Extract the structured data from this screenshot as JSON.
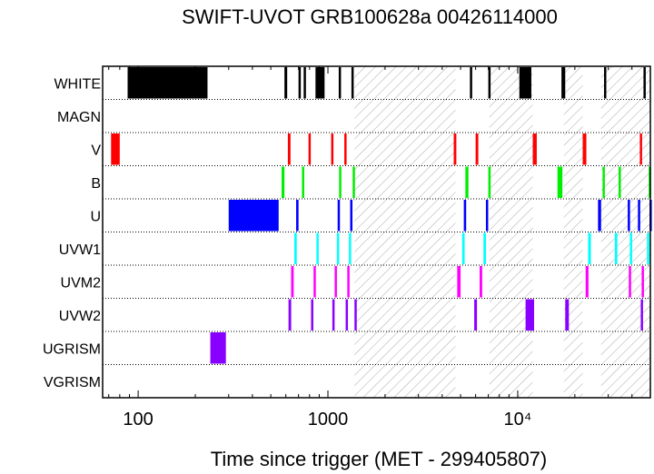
{
  "chart_data": {
    "type": "timeline",
    "title": "SWIFT-UVOT GRB100628a 00426114000",
    "xlabel": "Time since trigger (MET - 299405807)",
    "x_scale": "log",
    "xlim": [
      65,
      50000
    ],
    "x_ticks": [
      {
        "value": 100,
        "label": "100"
      },
      {
        "value": 1000,
        "label": "1000"
      },
      {
        "value": 10000,
        "label": "10⁴"
      }
    ],
    "filters": [
      "WHITE",
      "MAGN",
      "V",
      "B",
      "U",
      "UVW1",
      "UVM2",
      "UVW2",
      "UGRISM",
      "VGRISM"
    ],
    "colors": {
      "WHITE": "#000000",
      "MAGN": "#000000",
      "V": "#ff0000",
      "B": "#00ee00",
      "U": "#0000ff",
      "UVW1": "#00ffff",
      "UVM2": "#ff00ff",
      "UVW2": "#8800ff",
      "UGRISM": "#8800ff",
      "VGRISM": "#8800ff",
      "hatch": "#aaaaaa",
      "axis": "#000000"
    },
    "hatched_intervals": [
      [
        1380,
        4700
      ],
      [
        7100,
        12000
      ],
      [
        17500,
        22000
      ],
      [
        27500,
        50000
      ]
    ],
    "exposures": {
      "WHITE": [
        [
          88,
          232
        ],
        [
          590,
          610
        ],
        [
          700,
          718
        ],
        [
          745,
          762
        ],
        [
          860,
          960
        ],
        [
          1140,
          1155
        ],
        [
          1330,
          1345
        ],
        [
          5600,
          5750
        ],
        [
          7000,
          7050
        ],
        [
          10200,
          11800
        ],
        [
          17000,
          17800
        ],
        [
          28500,
          29000
        ],
        [
          46000,
          46400
        ]
      ],
      "MAGN": [],
      "V": [
        [
          72,
          80
        ],
        [
          615,
          635
        ],
        [
          790,
          810
        ],
        [
          1040,
          1060
        ],
        [
          1220,
          1240
        ],
        [
          4600,
          4750
        ],
        [
          6000,
          6200
        ],
        [
          12000,
          12600
        ],
        [
          22000,
          23000
        ],
        [
          44000,
          45000
        ]
      ],
      "B": [
        [
          570,
          590
        ],
        [
          730,
          750
        ],
        [
          1145,
          1165
        ],
        [
          1350,
          1370
        ],
        [
          5300,
          5500
        ],
        [
          7000,
          7200
        ],
        [
          16200,
          17200
        ],
        [
          28000,
          28600
        ],
        [
          34000,
          34600
        ],
        [
          49000,
          50000
        ]
      ],
      "U": [
        [
          300,
          550
        ],
        [
          680,
          700
        ],
        [
          1125,
          1145
        ],
        [
          1310,
          1330
        ],
        [
          5200,
          5350
        ],
        [
          6800,
          6950
        ],
        [
          26500,
          27500
        ],
        [
          38000,
          38600
        ],
        [
          43000,
          44000
        ],
        [
          49500,
          50000
        ]
      ],
      "UVW1": [
        [
          665,
          685
        ],
        [
          870,
          890
        ],
        [
          1115,
          1135
        ],
        [
          1290,
          1310
        ],
        [
          5100,
          5250
        ],
        [
          6600,
          6800
        ],
        [
          23500,
          24300
        ],
        [
          32500,
          33500
        ],
        [
          39000,
          40000
        ],
        [
          48000,
          49000
        ]
      ],
      "UVM2": [
        [
          640,
          660
        ],
        [
          840,
          860
        ],
        [
          1085,
          1105
        ],
        [
          1265,
          1285
        ],
        [
          4800,
          5000
        ],
        [
          6300,
          6500
        ],
        [
          22800,
          23600
        ],
        [
          38500,
          39500
        ],
        [
          45000,
          46000
        ]
      ],
      "UVW2": [
        [
          620,
          640
        ],
        [
          815,
          835
        ],
        [
          1055,
          1075
        ],
        [
          1240,
          1260
        ],
        [
          1380,
          1395
        ],
        [
          5900,
          6100
        ],
        [
          11000,
          12200
        ],
        [
          17800,
          18600
        ],
        [
          44500,
          45500
        ]
      ],
      "UGRISM": [
        [
          240,
          290
        ]
      ],
      "VGRISM": []
    }
  }
}
